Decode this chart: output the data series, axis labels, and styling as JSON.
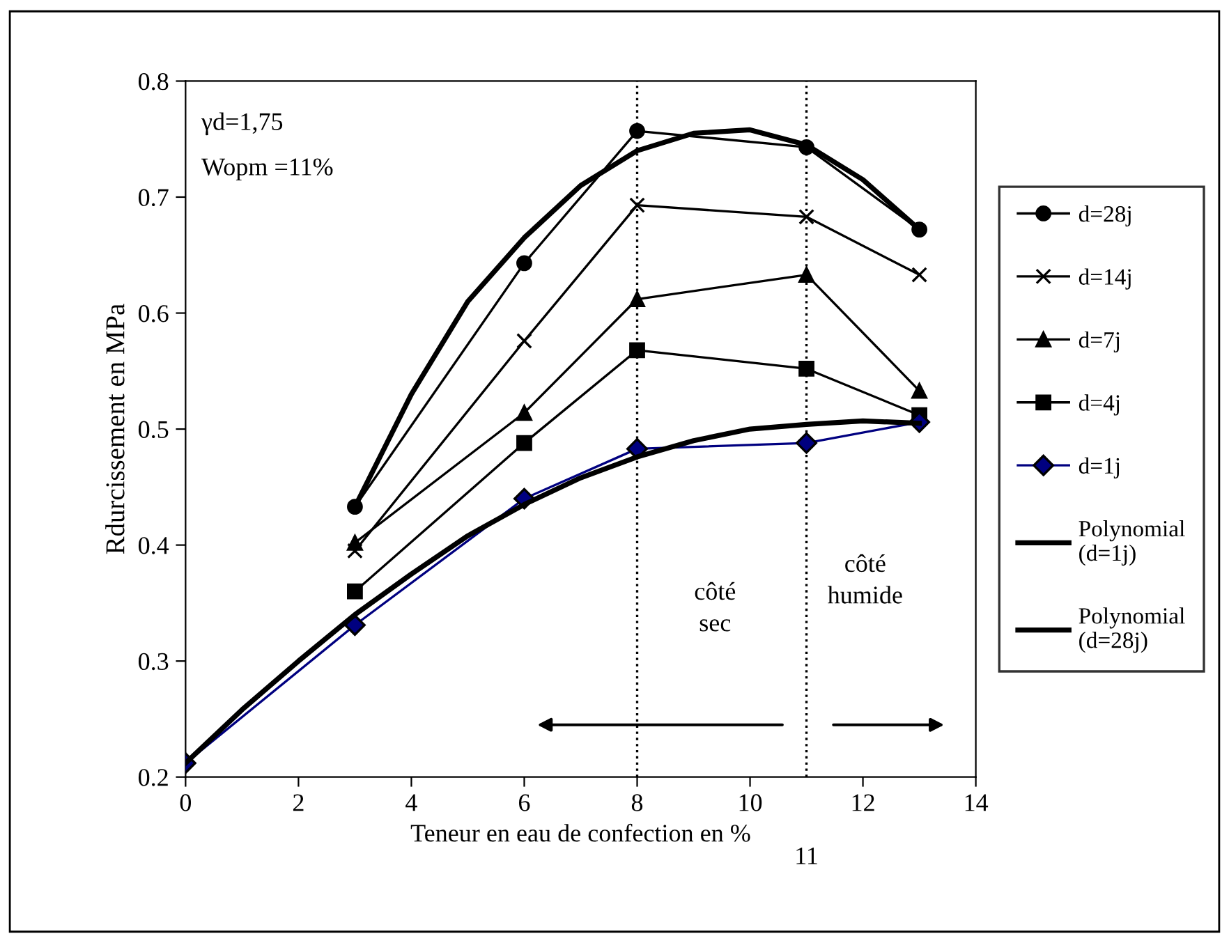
{
  "chart_data": {
    "type": "line",
    "xlabel": "Teneur en eau de confection en %",
    "ylabel": "Rdurcissement en MPa",
    "xlim": [
      0,
      14
    ],
    "xticks": [
      0,
      2,
      4,
      6,
      8,
      10,
      12,
      14
    ],
    "ylim": [
      0.2,
      0.8
    ],
    "yticks": [
      {
        "value": 0.2,
        "label": "0.2"
      },
      {
        "value": 0.3,
        "label": "0.3"
      },
      {
        "value": 0.4,
        "label": "0.4"
      },
      {
        "value": 0.5,
        "label": "0.5"
      },
      {
        "value": 0.6,
        "label": "0.6"
      },
      {
        "value": 0.7,
        "label": "0.7"
      },
      {
        "value": 0.8,
        "label": "0.8"
      }
    ],
    "grid": false,
    "legend": "right",
    "series": [
      {
        "name": "d=28j",
        "color": "#000000",
        "marker": "circle",
        "x": [
          3,
          6,
          8,
          11,
          13
        ],
        "values": [
          0.433,
          0.643,
          0.757,
          0.743,
          0.672
        ]
      },
      {
        "name": "d=14j",
        "color": "#000000",
        "marker": "cross",
        "x": [
          3,
          6,
          8,
          11,
          13
        ],
        "values": [
          0.395,
          0.576,
          0.693,
          0.683,
          0.633
        ]
      },
      {
        "name": "d=7j",
        "color": "#000000",
        "marker": "triangle",
        "x": [
          3,
          6,
          8,
          11,
          13
        ],
        "values": [
          0.402,
          0.514,
          0.612,
          0.633,
          0.533
        ]
      },
      {
        "name": "d=4j",
        "color": "#000000",
        "marker": "square",
        "x": [
          3,
          6,
          8,
          11,
          13
        ],
        "values": [
          0.36,
          0.488,
          0.568,
          0.552,
          0.512
        ]
      },
      {
        "name": "d=1j",
        "color": "#000080",
        "marker": "diamond",
        "x": [
          0,
          3,
          6,
          8,
          11,
          13
        ],
        "values": [
          0.212,
          0.331,
          0.44,
          0.483,
          0.488,
          0.506
        ]
      },
      {
        "name": "Polynomial (d=1j)",
        "color": "#000000",
        "marker": "none",
        "x": [
          0,
          1,
          2,
          3,
          4,
          5,
          6,
          7,
          8,
          9,
          10,
          11,
          12,
          13
        ],
        "values": [
          0.212,
          0.258,
          0.3,
          0.34,
          0.375,
          0.408,
          0.435,
          0.458,
          0.476,
          0.49,
          0.5,
          0.504,
          0.507,
          0.505
        ]
      },
      {
        "name": "Polynomial (d=28j)",
        "color": "#000000",
        "marker": "none",
        "x": [
          3,
          4,
          5,
          6,
          7,
          8,
          9,
          10,
          11,
          12,
          13
        ],
        "values": [
          0.433,
          0.53,
          0.61,
          0.665,
          0.71,
          0.74,
          0.755,
          0.758,
          0.745,
          0.715,
          0.672
        ]
      }
    ],
    "ref_lines": [
      {
        "axis": "x",
        "value": 8,
        "line_style": "dotted",
        "color": "#000000"
      },
      {
        "axis": "x",
        "value": 11,
        "label": "11",
        "line_style": "dotted",
        "color": "#000000"
      }
    ],
    "annotations": [
      "γd=1,75",
      "Wopm =11%",
      "côté\nsec",
      "côté\nhumide"
    ]
  }
}
